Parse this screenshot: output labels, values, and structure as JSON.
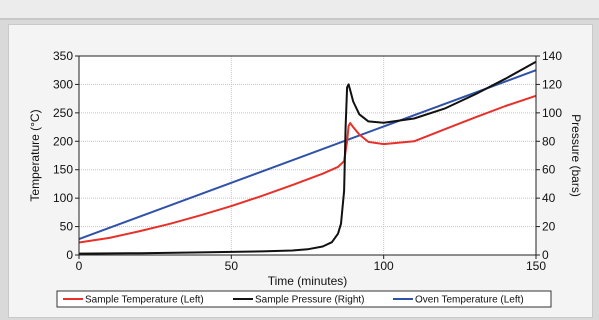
{
  "chart_data": {
    "type": "line",
    "title": "",
    "xlabel": "Time (minutes)",
    "ylabel": "Temperature (°C)",
    "y2label": "Pressure (bars)",
    "xlim": [
      0,
      150
    ],
    "ylim": [
      0,
      350
    ],
    "y2lim": [
      0,
      140
    ],
    "xticks": [
      "0",
      "50",
      "100",
      "150"
    ],
    "yticks": [
      "0",
      "50",
      "100",
      "150",
      "200",
      "250",
      "300",
      "350"
    ],
    "y2ticks": [
      "0",
      "20",
      "40",
      "60",
      "80",
      "100",
      "120",
      "140"
    ],
    "grid": true,
    "legend_position": "bottom",
    "series": [
      {
        "name": "Sample Temperature (Left)",
        "axis": "left",
        "color": "#e8302a",
        "x": [
          0,
          10,
          20,
          30,
          40,
          50,
          60,
          70,
          80,
          85,
          87,
          88,
          88.5,
          89,
          90,
          92,
          95,
          100,
          110,
          120,
          130,
          140,
          150
        ],
        "y": [
          22,
          30,
          42,
          55,
          70,
          86,
          104,
          123,
          143,
          155,
          165,
          200,
          227,
          232,
          225,
          212,
          199,
          195,
          200,
          221,
          242,
          262,
          280
        ]
      },
      {
        "name": "Sample Pressure (Right)",
        "axis": "right",
        "color": "#111111",
        "x": [
          0,
          20,
          40,
          60,
          70,
          75,
          80,
          83,
          85,
          86,
          87,
          87.5,
          88,
          88.5,
          89,
          90,
          92,
          95,
          100,
          110,
          120,
          130,
          140,
          150
        ],
        "y": [
          1,
          1.3,
          1.8,
          2.5,
          3.2,
          4,
          6,
          9,
          15,
          22,
          45,
          90,
          118,
          120,
          116,
          108,
          99,
          94,
          93,
          96,
          103,
          113,
          124,
          136
        ]
      },
      {
        "name": "Oven Temperature (Left)",
        "axis": "left",
        "color": "#2f52a8",
        "x": [
          0,
          150
        ],
        "y": [
          28,
          325
        ]
      }
    ]
  }
}
